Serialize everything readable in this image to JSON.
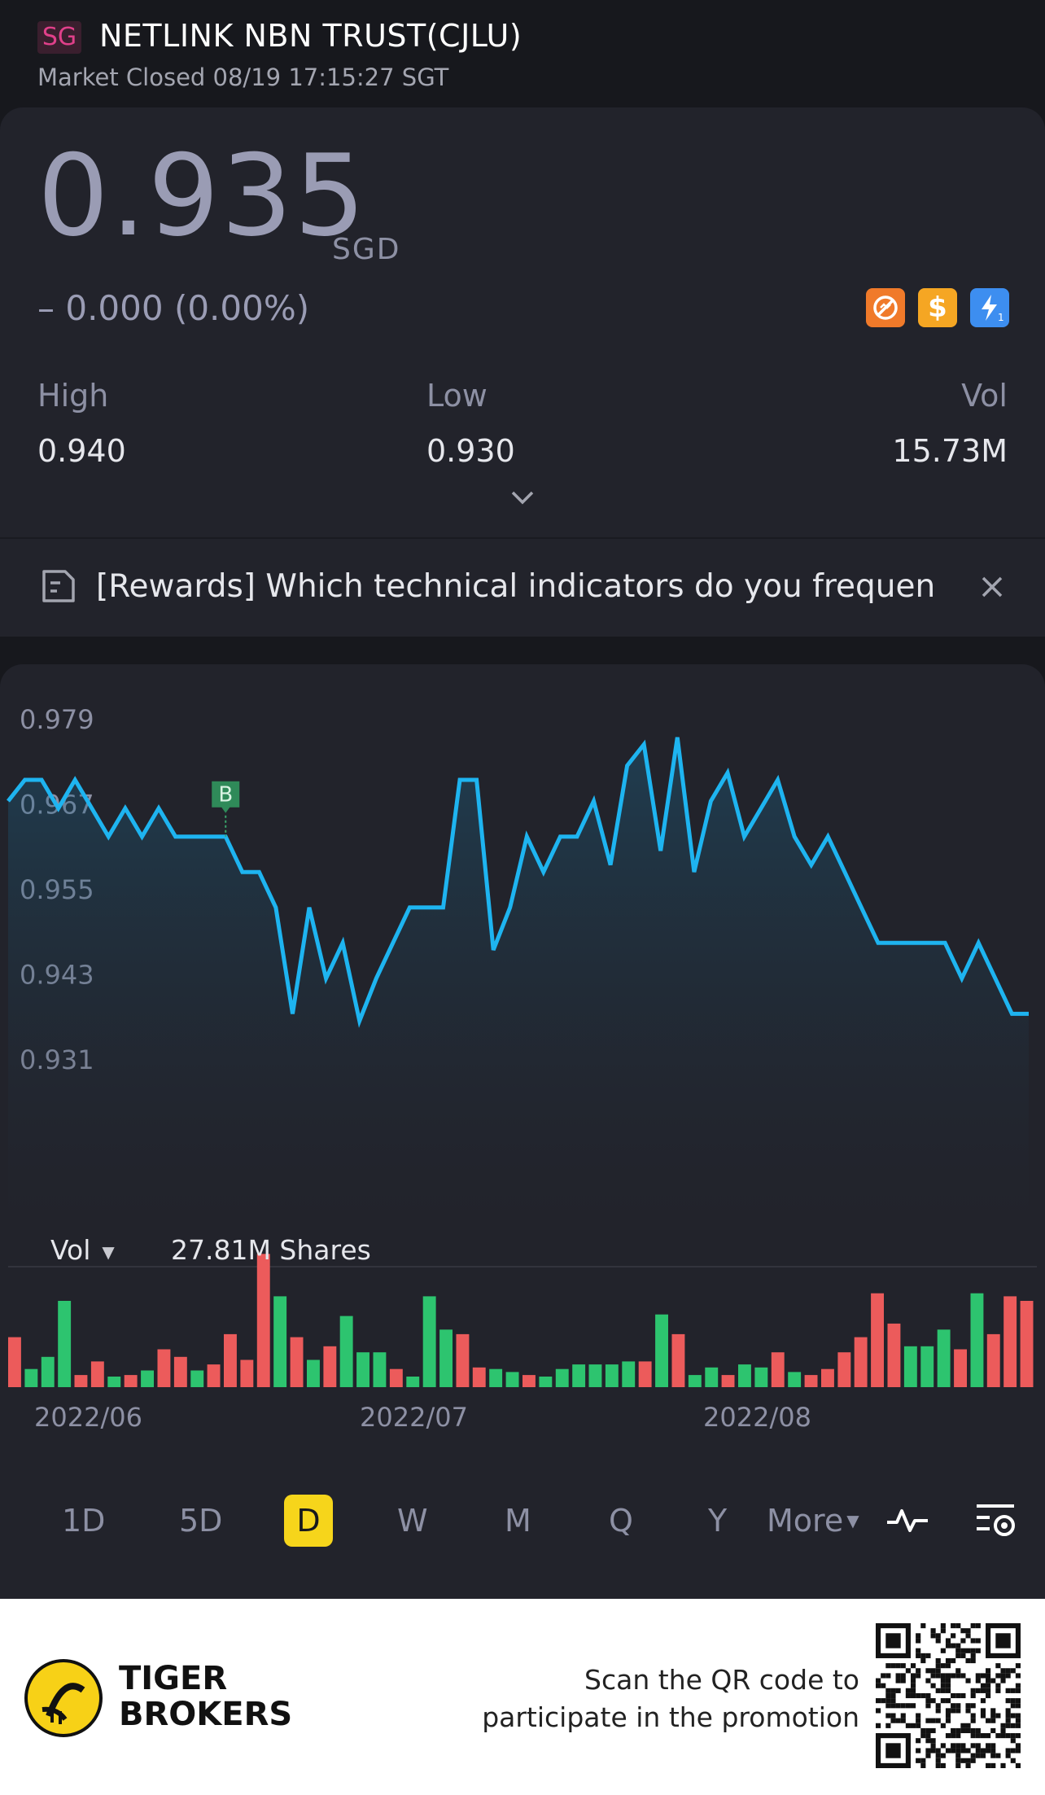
{
  "header": {
    "market_badge": "SG",
    "title": "NETLINK NBN TRUST(CJLU)",
    "status": "Market Closed 08/19 17:15:27 SGT"
  },
  "quote": {
    "price": "0.935",
    "currency": "SGD",
    "change": "– 0.000 (0.00%)",
    "icons": [
      "no-short-icon",
      "dividend-dollar-icon",
      "flash-icon"
    ],
    "icon_dollar_glyph": "$",
    "high_label": "High",
    "high_value": "0.940",
    "low_label": "Low",
    "low_value": "0.930",
    "vol_label": "Vol",
    "vol_value": "15.73M"
  },
  "banner": {
    "text": "[Rewards] Which technical indicators do you frequentl..."
  },
  "chart": {
    "y_ticks": [
      "0.979",
      "0.967",
      "0.955",
      "0.943",
      "0.931"
    ],
    "x_ticks": [
      "2022/06",
      "2022/07",
      "2022/08"
    ],
    "vol_selector": "Vol",
    "vol_shares": "27.81M Shares",
    "marker_label": "B",
    "line_color": "#1eb4f0",
    "up_color": "#2dc46f",
    "down_color": "#ec5b5b"
  },
  "chart_data": {
    "type": "line",
    "ylim": [
      0.931,
      0.979
    ],
    "prices": [
      0.9675,
      0.9705,
      0.9705,
      0.9665,
      0.9705,
      0.9665,
      0.9625,
      0.9665,
      0.9625,
      0.9665,
      0.9625,
      0.9625,
      0.9625,
      0.9625,
      0.9575,
      0.9575,
      0.9525,
      0.9375,
      0.9525,
      0.9425,
      0.9475,
      0.9365,
      0.9425,
      0.9475,
      0.9525,
      0.9525,
      0.9525,
      0.9705,
      0.9705,
      0.9465,
      0.9525,
      0.9625,
      0.9575,
      0.9625,
      0.9625,
      0.9675,
      0.9585,
      0.9725,
      0.9755,
      0.9605,
      0.9765,
      0.9575,
      0.9675,
      0.9715,
      0.9625,
      0.9665,
      0.9705,
      0.9625,
      0.9585,
      0.9625,
      0.9575,
      0.9525,
      0.9475,
      0.9475,
      0.9475,
      0.9475,
      0.9475,
      0.9425,
      0.9475,
      0.9425,
      0.9375,
      0.9375
    ],
    "marker_index": 13,
    "volumes": [
      {
        "v": 0.33,
        "up": false
      },
      {
        "v": 0.12,
        "up": true
      },
      {
        "v": 0.2,
        "up": true
      },
      {
        "v": 0.57,
        "up": true
      },
      {
        "v": 0.08,
        "up": false
      },
      {
        "v": 0.17,
        "up": false
      },
      {
        "v": 0.07,
        "up": true
      },
      {
        "v": 0.08,
        "up": false
      },
      {
        "v": 0.11,
        "up": true
      },
      {
        "v": 0.25,
        "up": false
      },
      {
        "v": 0.2,
        "up": false
      },
      {
        "v": 0.11,
        "up": true
      },
      {
        "v": 0.15,
        "up": false
      },
      {
        "v": 0.35,
        "up": false
      },
      {
        "v": 0.18,
        "up": false
      },
      {
        "v": 0.88,
        "up": false
      },
      {
        "v": 0.6,
        "up": true
      },
      {
        "v": 0.33,
        "up": false
      },
      {
        "v": 0.18,
        "up": true
      },
      {
        "v": 0.27,
        "up": false
      },
      {
        "v": 0.47,
        "up": true
      },
      {
        "v": 0.23,
        "up": true
      },
      {
        "v": 0.23,
        "up": true
      },
      {
        "v": 0.12,
        "up": false
      },
      {
        "v": 0.07,
        "up": true
      },
      {
        "v": 0.6,
        "up": true
      },
      {
        "v": 0.38,
        "up": true
      },
      {
        "v": 0.35,
        "up": false
      },
      {
        "v": 0.13,
        "up": false
      },
      {
        "v": 0.12,
        "up": true
      },
      {
        "v": 0.1,
        "up": true
      },
      {
        "v": 0.08,
        "up": false
      },
      {
        "v": 0.07,
        "up": true
      },
      {
        "v": 0.12,
        "up": true
      },
      {
        "v": 0.15,
        "up": true
      },
      {
        "v": 0.15,
        "up": true
      },
      {
        "v": 0.15,
        "up": true
      },
      {
        "v": 0.17,
        "up": true
      },
      {
        "v": 0.17,
        "up": false
      },
      {
        "v": 0.48,
        "up": true
      },
      {
        "v": 0.35,
        "up": false
      },
      {
        "v": 0.08,
        "up": true
      },
      {
        "v": 0.13,
        "up": true
      },
      {
        "v": 0.08,
        "up": false
      },
      {
        "v": 0.15,
        "up": true
      },
      {
        "v": 0.13,
        "up": true
      },
      {
        "v": 0.23,
        "up": false
      },
      {
        "v": 0.1,
        "up": true
      },
      {
        "v": 0.08,
        "up": false
      },
      {
        "v": 0.12,
        "up": false
      },
      {
        "v": 0.23,
        "up": false
      },
      {
        "v": 0.33,
        "up": false
      },
      {
        "v": 0.62,
        "up": false
      },
      {
        "v": 0.42,
        "up": false
      },
      {
        "v": 0.27,
        "up": true
      },
      {
        "v": 0.27,
        "up": true
      },
      {
        "v": 0.38,
        "up": true
      },
      {
        "v": 0.25,
        "up": false
      },
      {
        "v": 0.62,
        "up": true
      },
      {
        "v": 0.35,
        "up": false
      },
      {
        "v": 0.6,
        "up": false
      },
      {
        "v": 0.57,
        "up": false
      }
    ]
  },
  "periods": {
    "p1d": "1D",
    "p5d": "5D",
    "pd": "D",
    "pw": "W",
    "pm": "M",
    "pq": "Q",
    "py": "Y",
    "more": "More"
  },
  "footer": {
    "brand_line1": "TIGER",
    "brand_line2": "BROKERS",
    "promo_line1": "Scan the QR code to",
    "promo_line2": "participate in the promotion"
  }
}
